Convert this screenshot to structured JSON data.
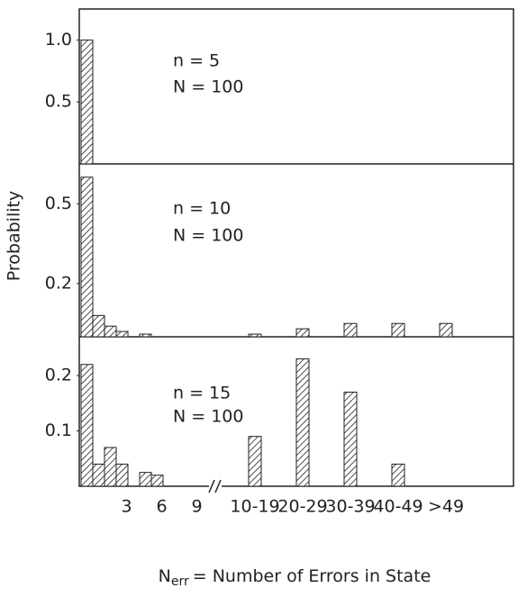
{
  "chart_data": [
    {
      "type": "bar",
      "color": "#222222",
      "annotations": [
        "n = 5",
        "N = 100"
      ],
      "values": [
        1.0,
        0,
        0,
        0,
        0,
        0,
        0,
        0,
        0,
        0,
        0,
        0,
        0,
        0,
        0
      ],
      "ylim": [
        0,
        1.25
      ],
      "yticks": [
        {
          "value": 1,
          "label": "1.0"
        },
        0.5
      ]
    },
    {
      "type": "bar",
      "color": "#222222",
      "y_label": "Probability",
      "annotations": [
        "n = 10",
        "N = 100"
      ],
      "values": [
        0.6,
        0.08,
        0.04,
        0.02,
        0,
        0.01,
        0,
        0,
        0,
        0,
        0.01,
        0.03,
        0.05,
        0.05,
        0.05
      ],
      "ylim": [
        0,
        0.65
      ],
      "yticks": [
        0.5,
        0.2
      ]
    },
    {
      "type": "bar",
      "color": "#222222",
      "annotations": [
        "n = 15",
        "N = 100"
      ],
      "categories": [
        null,
        null,
        null,
        "3",
        null,
        null,
        "6",
        null,
        null,
        "9",
        "10-19",
        "20-29",
        "30-39",
        "40-49",
        ">49"
      ],
      "x_label": {
        "main": "N",
        "sub": "err",
        "rest": "= Number of Errors in State"
      },
      "values": [
        0.22,
        0.04,
        0.07,
        0.04,
        0,
        0.025,
        0.02,
        0,
        0,
        0,
        0.09,
        0.23,
        0.17,
        0.04,
        0
      ],
      "ylim": [
        0,
        0.27
      ],
      "yticks": [
        0.2,
        0.1
      ]
    }
  ]
}
